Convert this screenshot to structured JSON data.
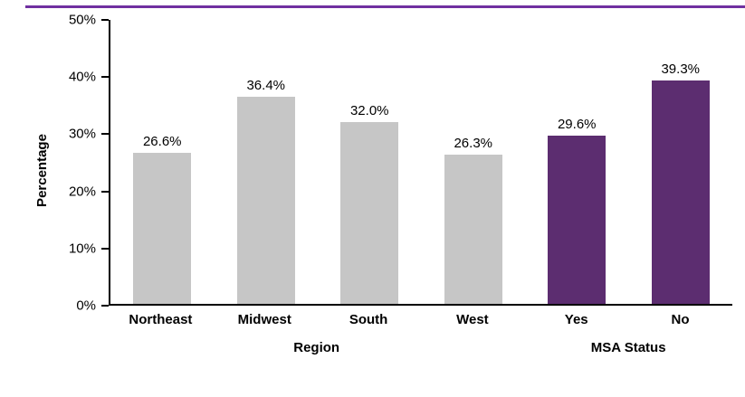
{
  "header": {
    "accent_color": "#7030a0"
  },
  "chart_data": {
    "type": "bar",
    "categories": [
      "Northeast",
      "Midwest",
      "South",
      "West",
      "Yes",
      "No"
    ],
    "values": [
      26.6,
      36.4,
      32.0,
      26.3,
      29.6,
      39.3
    ],
    "value_labels": [
      "26.6%",
      "36.4%",
      "32.0%",
      "26.3%",
      "29.6%",
      "39.3%"
    ],
    "bar_colors": [
      "#c6c6c6",
      "#c6c6c6",
      "#c6c6c6",
      "#c6c6c6",
      "#5c2d70",
      "#5c2d70"
    ],
    "title": "",
    "xlabel": "",
    "ylabel": "Percentage",
    "ylim": [
      0,
      50
    ],
    "ytick_labels": [
      "50%",
      "40%",
      "30%",
      "20%",
      "10%",
      "0%"
    ],
    "grid": false,
    "legend": false,
    "groups": [
      {
        "label": "Region",
        "span": 4
      },
      {
        "label": "MSA Status",
        "span": 2
      }
    ]
  }
}
